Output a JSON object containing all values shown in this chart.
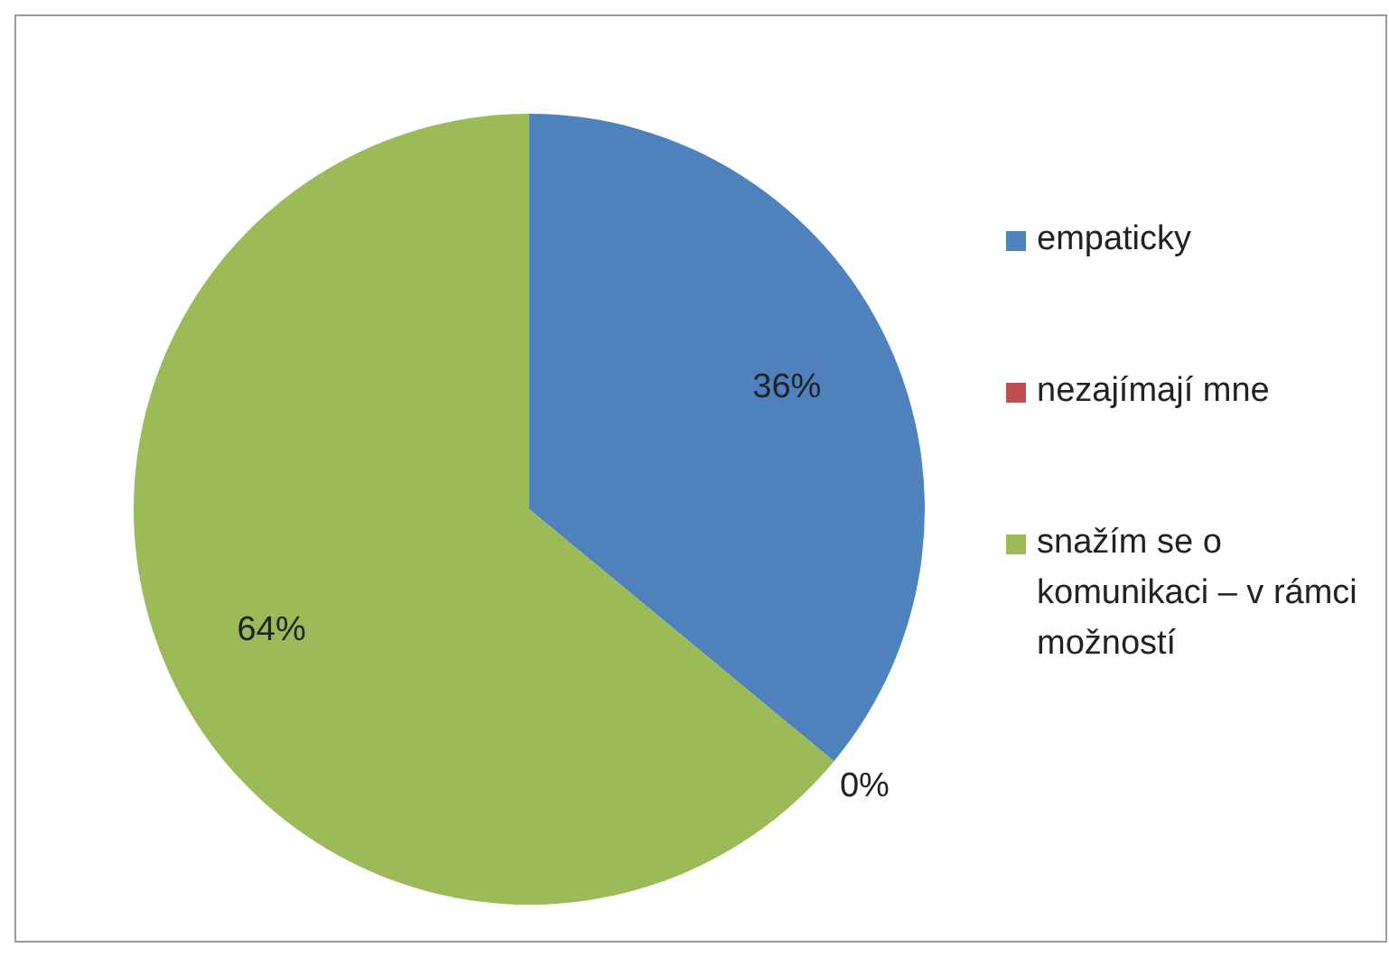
{
  "chart_data": {
    "type": "pie",
    "categories": [
      "empaticky",
      "nezajímají mne",
      "snažím se o komunikaci – v rámci možností"
    ],
    "values": [
      36,
      0,
      64
    ],
    "colors": [
      "#4f81bd",
      "#c0504d",
      "#9bbb59"
    ],
    "value_labels": [
      "36%",
      "0%",
      "64%"
    ],
    "legend": "right"
  }
}
